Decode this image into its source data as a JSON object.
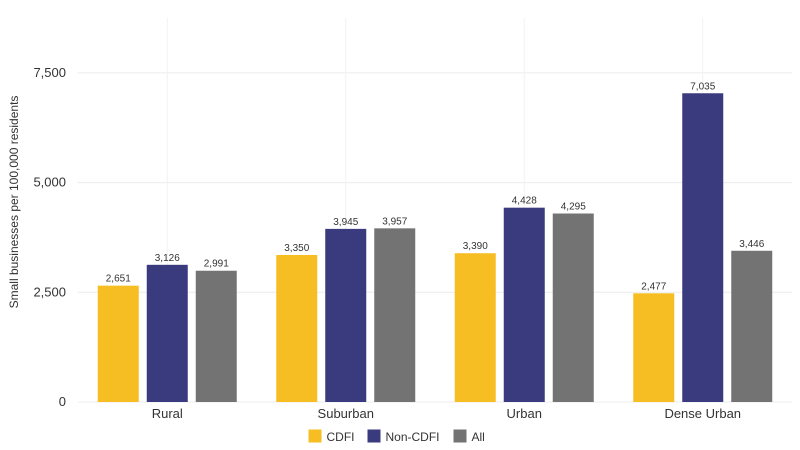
{
  "chart_data": {
    "type": "bar",
    "title": "",
    "xlabel": "",
    "ylabel": "Small businesses per 100,000 residents",
    "categories": [
      "Rural",
      "Suburban",
      "Urban",
      "Dense Urban"
    ],
    "series": [
      {
        "name": "CDFI",
        "color": "#F6BE22",
        "values": [
          2651,
          3350,
          3390,
          2477
        ],
        "labels": [
          "2,651",
          "3,350",
          "3,390",
          "2,477"
        ]
      },
      {
        "name": "Non-CDFI",
        "color": "#393B7E",
        "values": [
          3126,
          3945,
          4428,
          7035
        ],
        "labels": [
          "3,126",
          "3,945",
          "4,428",
          "7,035"
        ]
      },
      {
        "name": "All",
        "color": "#737373",
        "values": [
          2991,
          3957,
          4295,
          3446
        ],
        "labels": [
          "2,991",
          "3,957",
          "4,295",
          "3,446"
        ]
      }
    ],
    "ylim": [
      0,
      8750
    ],
    "yticks": [
      0,
      2500,
      5000,
      7500
    ],
    "ytick_labels": [
      "0",
      "2,500",
      "5,000",
      "7,500"
    ],
    "grid": true,
    "legend_position": "bottom"
  }
}
